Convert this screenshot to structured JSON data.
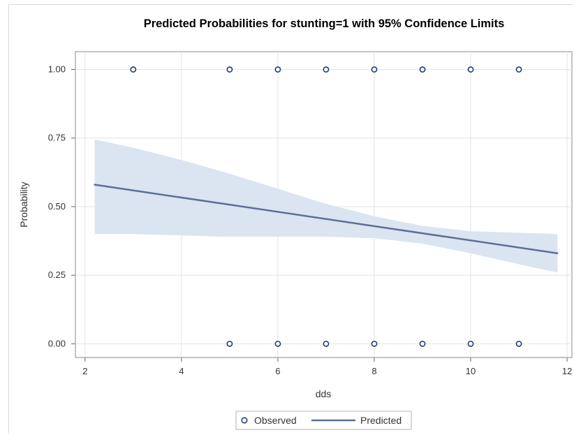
{
  "chart_data": {
    "type": "line",
    "title": "Predicted Probabilities for stunting=1 with 95% Confidence Limits",
    "xlabel": "dds",
    "ylabel": "Probability",
    "xlim": [
      1.8,
      12.1
    ],
    "ylim": [
      -0.05,
      1.065
    ],
    "x_ticks": [
      2,
      4,
      6,
      8,
      10,
      12
    ],
    "y_ticks": [
      0.0,
      0.25,
      0.5,
      0.75,
      1.0
    ],
    "x_tick_labels": [
      "2",
      "4",
      "6",
      "8",
      "10",
      "12"
    ],
    "y_tick_labels": [
      "0.00",
      "0.25",
      "0.50",
      "0.75",
      "1.00"
    ],
    "grid": true,
    "legend_position": "bottom",
    "legend": [
      {
        "label": "Observed",
        "kind": "marker"
      },
      {
        "label": "Predicted",
        "kind": "line"
      }
    ],
    "colors": {
      "band": "#dbe4f1",
      "line": "#5b6f96",
      "marker": "#1f3b73",
      "grid": "#e3e3e3"
    },
    "observed": {
      "name": "Observed",
      "points": [
        {
          "x": 3,
          "y": 1
        },
        {
          "x": 5,
          "y": 1
        },
        {
          "x": 6,
          "y": 1
        },
        {
          "x": 7,
          "y": 1
        },
        {
          "x": 8,
          "y": 1
        },
        {
          "x": 9,
          "y": 1
        },
        {
          "x": 10,
          "y": 1
        },
        {
          "x": 11,
          "y": 1
        },
        {
          "x": 5,
          "y": 0
        },
        {
          "x": 6,
          "y": 0
        },
        {
          "x": 7,
          "y": 0
        },
        {
          "x": 8,
          "y": 0
        },
        {
          "x": 9,
          "y": 0
        },
        {
          "x": 10,
          "y": 0
        },
        {
          "x": 11,
          "y": 0
        }
      ]
    },
    "predicted": {
      "name": "Predicted",
      "points": [
        {
          "x": 2.2,
          "y": 0.58
        },
        {
          "x": 11.8,
          "y": 0.33
        }
      ]
    },
    "confidence_band": {
      "upper": [
        {
          "x": 2.2,
          "y": 0.745
        },
        {
          "x": 3.0,
          "y": 0.715
        },
        {
          "x": 4.0,
          "y": 0.67
        },
        {
          "x": 5.0,
          "y": 0.62
        },
        {
          "x": 6.0,
          "y": 0.565
        },
        {
          "x": 7.0,
          "y": 0.51
        },
        {
          "x": 8.0,
          "y": 0.465
        },
        {
          "x": 9.0,
          "y": 0.43
        },
        {
          "x": 10.0,
          "y": 0.41
        },
        {
          "x": 11.0,
          "y": 0.405
        },
        {
          "x": 11.8,
          "y": 0.4
        }
      ],
      "lower": [
        {
          "x": 11.8,
          "y": 0.26
        },
        {
          "x": 11.0,
          "y": 0.29
        },
        {
          "x": 10.0,
          "y": 0.33
        },
        {
          "x": 9.0,
          "y": 0.365
        },
        {
          "x": 8.0,
          "y": 0.385
        },
        {
          "x": 7.0,
          "y": 0.39
        },
        {
          "x": 6.0,
          "y": 0.39
        },
        {
          "x": 5.0,
          "y": 0.39
        },
        {
          "x": 4.0,
          "y": 0.395
        },
        {
          "x": 3.0,
          "y": 0.4
        },
        {
          "x": 2.2,
          "y": 0.4
        }
      ]
    }
  }
}
